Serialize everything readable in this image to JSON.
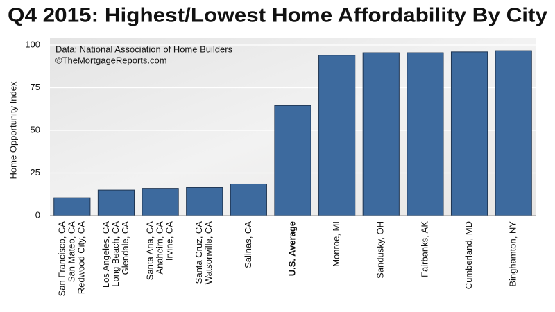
{
  "chart_data": {
    "type": "bar",
    "title": "Q4 2015: Highest/Lowest Home Affordability By City",
    "notes": [
      "Data: National Association of Home Builders",
      "©TheMortgageReports.com"
    ],
    "y_label": "Home Opportunity Index",
    "categories": [
      [
        "San Francisco, CA",
        "San Mateo, CA",
        "Redwood City, CA"
      ],
      [
        "Los Angeles, CA",
        "Long Beach, CA",
        "Glendale, CA"
      ],
      [
        "Santa Ana, CA",
        "Anaheim, CA",
        "Irvine, CA"
      ],
      [
        "Santa Cruz, CA",
        "Watsonville, CA"
      ],
      [
        "Salinas, CA"
      ],
      [
        "U.S. Average"
      ],
      [
        "Monroe, MI"
      ],
      [
        "Sandusky, OH"
      ],
      [
        "Fairbanks, AK"
      ],
      [
        "Cumberland, MD"
      ],
      [
        "Binghamton, NY"
      ]
    ],
    "values": [
      10.5,
      15,
      16,
      16.5,
      18.5,
      64.5,
      94,
      95.5,
      95.5,
      96,
      96.7
    ],
    "bold_category": 5,
    "color": "#3d6a9e",
    "ylim": [
      0,
      100
    ],
    "yticks": [
      0,
      25,
      50,
      75,
      100
    ],
    "grid": true
  }
}
